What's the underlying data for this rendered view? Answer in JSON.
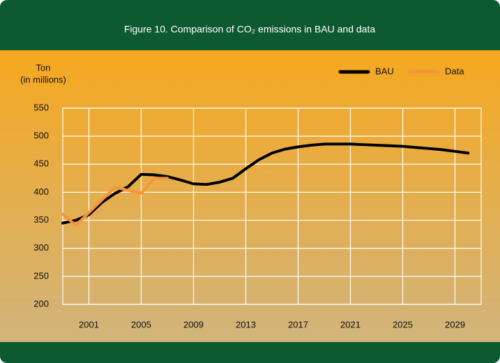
{
  "chart_data": {
    "type": "line",
    "title": "Figure 10.  Comparison of CO₂ emissions in BAU and data",
    "ylabel": [
      "Ton",
      "(in millions)"
    ],
    "series": [
      {
        "name": "BAU",
        "color": "#000000",
        "x": [
          1999,
          2000,
          2001,
          2002,
          2003,
          2004,
          2005,
          2006,
          2007,
          2008,
          2009,
          2010,
          2011,
          2012,
          2013,
          2014,
          2015,
          2016,
          2017,
          2018,
          2019,
          2020,
          2021,
          2022,
          2023,
          2024,
          2025,
          2026,
          2027,
          2028,
          2029,
          2030
        ],
        "values": [
          345,
          350,
          360,
          382,
          398,
          410,
          432,
          431,
          428,
          422,
          415,
          414,
          418,
          425,
          442,
          458,
          470,
          477,
          481,
          484,
          486,
          486,
          486,
          485,
          484,
          483,
          482,
          480,
          478,
          476,
          473,
          470
        ]
      },
      {
        "name": "Data",
        "color": "#f7943a",
        "x": [
          1999,
          2000,
          2003,
          2005,
          2006,
          2007
        ],
        "values": [
          361,
          341,
          409,
          398,
          425,
          425
        ]
      }
    ],
    "xlim": [
      1999,
      2031
    ],
    "xticks": [
      2001,
      2005,
      2009,
      2013,
      2017,
      2021,
      2025,
      2029
    ],
    "ylim": [
      200,
      550
    ],
    "yticks": [
      200,
      250,
      300,
      350,
      400,
      450,
      500,
      550
    ],
    "grid": true,
    "legend": "top-right"
  }
}
